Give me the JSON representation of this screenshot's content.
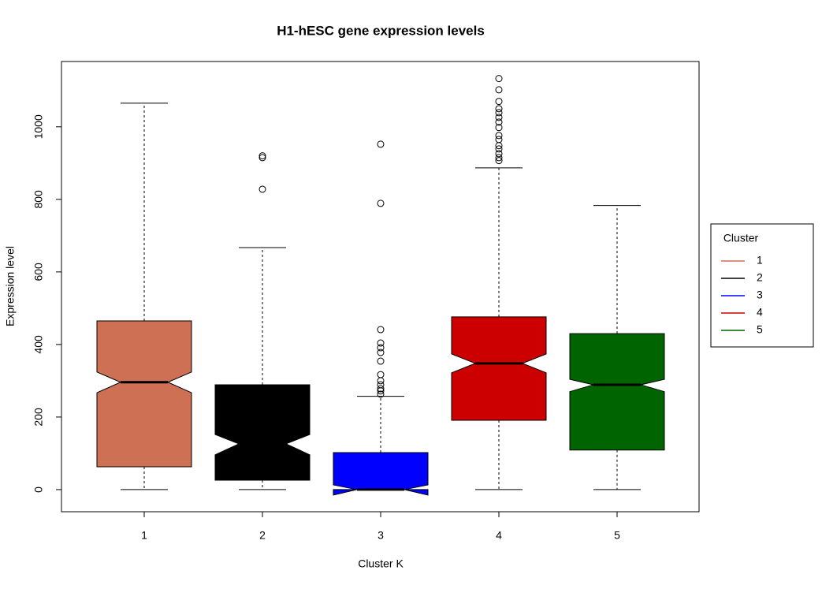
{
  "chart_data": {
    "type": "boxplot",
    "title": "H1-hESC gene expression levels",
    "x_label": "Cluster K",
    "y_label": "Expression level",
    "categories": [
      "1",
      "2",
      "3",
      "4",
      "5"
    ],
    "ylim": [
      -61,
      1180
    ],
    "yticks": [
      0,
      200,
      400,
      600,
      800,
      1000
    ],
    "legend_title": "Cluster",
    "legend_position": "right",
    "series": [
      {
        "name": "1",
        "color": "#cd7054",
        "whisker_low": 0,
        "q1": 63,
        "notch_low": 267,
        "median": 296,
        "notch_high": 324,
        "q3": 465,
        "whisker_high": 1065,
        "outliers": []
      },
      {
        "name": "2",
        "color": "#000000",
        "whisker_low": 0,
        "q1": 26,
        "notch_low": 96,
        "median": 126,
        "notch_high": 152,
        "q3": 289,
        "whisker_high": 667,
        "outliers": [
          920,
          915,
          828
        ]
      },
      {
        "name": "3",
        "color": "#0000ff",
        "whisker_low": 0,
        "q1": 0,
        "notch_low": -15,
        "median": 0,
        "notch_high": 13,
        "q3": 102,
        "whisker_high": 257,
        "outliers": [
          952,
          789,
          441,
          404,
          391,
          378,
          354,
          317,
          300,
          289,
          278,
          272,
          263
        ]
      },
      {
        "name": "4",
        "color": "#cd0000",
        "whisker_low": 0,
        "q1": 191,
        "notch_low": 322,
        "median": 348,
        "notch_high": 374,
        "q3": 476,
        "whisker_high": 887,
        "outliers": [
          1133,
          1102,
          1070,
          1050,
          1039,
          1026,
          1013,
          998,
          976,
          965,
          948,
          939,
          926,
          915,
          907
        ]
      },
      {
        "name": "5",
        "color": "#006400",
        "whisker_low": 0,
        "q1": 109,
        "notch_low": 270,
        "median": 289,
        "notch_high": 304,
        "q3": 430,
        "whisker_high": 783,
        "outliers": []
      }
    ]
  }
}
